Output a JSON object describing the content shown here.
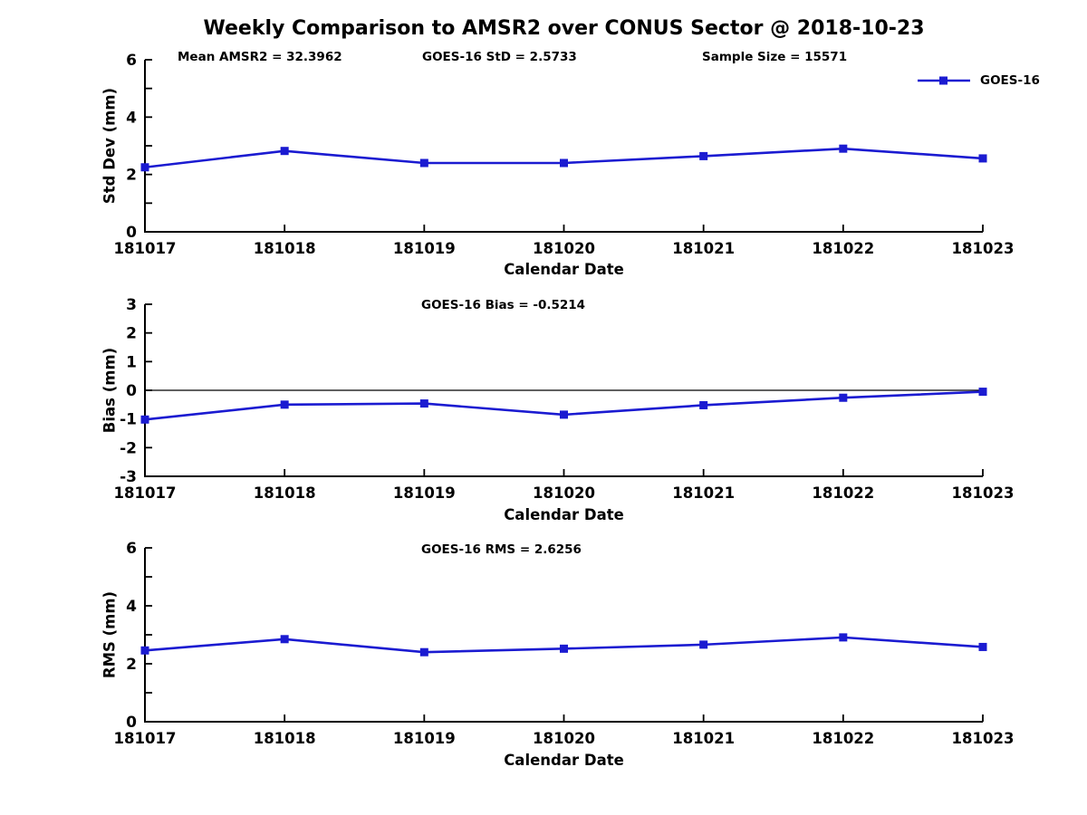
{
  "title": "Weekly Comparison to AMSR2 over CONUS Sector @ 2018-10-23",
  "colors": {
    "series": "#1b1bd1",
    "axis": "#000000"
  },
  "legend": {
    "label": "GOES-16",
    "position": "top-right"
  },
  "chart_data": [
    {
      "type": "line",
      "panel": "std-dev",
      "annotations": [
        {
          "text": "Mean AMSR2 = 32.3962"
        },
        {
          "text": "GOES-16 StD = 2.5733"
        },
        {
          "text": "Sample Size = 15571"
        }
      ],
      "categories": [
        "181017",
        "181018",
        "181019",
        "181020",
        "181021",
        "181022",
        "181023"
      ],
      "series": [
        {
          "name": "GOES-16",
          "values": [
            2.25,
            2.82,
            2.4,
            2.4,
            2.64,
            2.9,
            2.56
          ]
        }
      ],
      "xlabel": "Calendar Date",
      "ylabel": "Std Dev (mm)",
      "ylim": [
        0,
        6
      ],
      "yticks": [
        0,
        1,
        2,
        3,
        4,
        5,
        6
      ],
      "yticks_labeled": [
        0,
        2,
        4,
        6
      ],
      "zero_line": false,
      "grid": false,
      "marker": "square"
    },
    {
      "type": "line",
      "panel": "bias",
      "annotations": [
        {
          "text": "GOES-16 Bias  = -0.5214"
        }
      ],
      "categories": [
        "181017",
        "181018",
        "181019",
        "181020",
        "181021",
        "181022",
        "181023"
      ],
      "series": [
        {
          "name": "GOES-16",
          "values": [
            -1.02,
            -0.5,
            -0.46,
            -0.85,
            -0.52,
            -0.26,
            -0.05
          ]
        }
      ],
      "xlabel": "Calendar Date",
      "ylabel": "Bias (mm)",
      "ylim": [
        -3,
        3
      ],
      "yticks": [
        -3,
        -2,
        -1,
        0,
        1,
        2,
        3
      ],
      "yticks_labeled": [
        -3,
        -2,
        -1,
        0,
        1,
        2,
        3
      ],
      "zero_line": true,
      "grid": false,
      "marker": "square"
    },
    {
      "type": "line",
      "panel": "rms",
      "annotations": [
        {
          "text": "GOES-16 RMS = 2.6256"
        }
      ],
      "categories": [
        "181017",
        "181018",
        "181019",
        "181020",
        "181021",
        "181022",
        "181023"
      ],
      "series": [
        {
          "name": "GOES-16",
          "values": [
            2.46,
            2.85,
            2.4,
            2.52,
            2.66,
            2.91,
            2.58
          ]
        }
      ],
      "xlabel": "Calendar Date",
      "ylabel": "RMS (mm)",
      "ylim": [
        0,
        6
      ],
      "yticks": [
        0,
        1,
        2,
        3,
        4,
        5,
        6
      ],
      "yticks_labeled": [
        0,
        2,
        4,
        6
      ],
      "zero_line": false,
      "grid": false,
      "marker": "square"
    }
  ]
}
